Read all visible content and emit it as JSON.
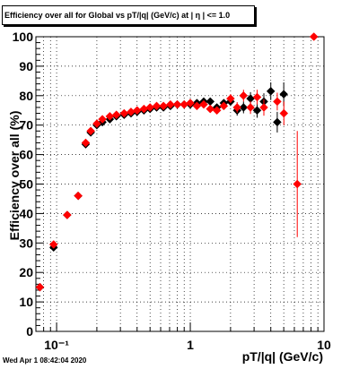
{
  "chart_data": {
    "type": "scatter",
    "title": "Efficiency over all for Global vs pT/|q| (GeV/c) at |  η | <= 1.0",
    "xlabel": "pT/|q| (GeV/c)",
    "ylabel": "Efficiency over all (%)",
    "xscale": "log",
    "xlim": [
      0.07,
      10
    ],
    "ylim": [
      0,
      100
    ],
    "grid": true,
    "x_tick_labels": [
      "10⁻¹",
      "1",
      "10"
    ],
    "y_tick_labels": [
      "0",
      "10",
      "20",
      "30",
      "40",
      "50",
      "60",
      "70",
      "80",
      "90",
      "100"
    ],
    "series": [
      {
        "color": "#000000",
        "marker": "diamond",
        "points": [
          {
            "x": 0.075,
            "y": 15,
            "err": 0.8
          },
          {
            "x": 0.095,
            "y": 28.5,
            "err": 1.0
          },
          {
            "x": 0.12,
            "y": 39.5,
            "err": 0.8
          },
          {
            "x": 0.145,
            "y": 46,
            "err": 0.8
          },
          {
            "x": 0.165,
            "y": 63.5,
            "err": 0.8
          },
          {
            "x": 0.18,
            "y": 67.5,
            "err": 0.6
          },
          {
            "x": 0.2,
            "y": 70,
            "err": 0.5
          },
          {
            "x": 0.22,
            "y": 71,
            "err": 0.5
          },
          {
            "x": 0.25,
            "y": 72,
            "err": 0.5
          },
          {
            "x": 0.28,
            "y": 73,
            "err": 0.5
          },
          {
            "x": 0.32,
            "y": 73.5,
            "err": 0.5
          },
          {
            "x": 0.36,
            "y": 74,
            "err": 0.5
          },
          {
            "x": 0.4,
            "y": 74.5,
            "err": 0.5
          },
          {
            "x": 0.45,
            "y": 75,
            "err": 0.5
          },
          {
            "x": 0.5,
            "y": 75.5,
            "err": 0.5
          },
          {
            "x": 0.56,
            "y": 76,
            "err": 0.5
          },
          {
            "x": 0.63,
            "y": 76,
            "err": 0.5
          },
          {
            "x": 0.71,
            "y": 76.5,
            "err": 0.6
          },
          {
            "x": 0.8,
            "y": 77,
            "err": 0.6
          },
          {
            "x": 0.9,
            "y": 77,
            "err": 0.6
          },
          {
            "x": 1.0,
            "y": 77,
            "err": 0.7
          },
          {
            "x": 1.12,
            "y": 77.5,
            "err": 0.8
          },
          {
            "x": 1.26,
            "y": 78,
            "err": 0.9
          },
          {
            "x": 1.41,
            "y": 78,
            "err": 1.0
          },
          {
            "x": 1.58,
            "y": 76,
            "err": 1.2
          },
          {
            "x": 1.78,
            "y": 77.5,
            "err": 1.3
          },
          {
            "x": 2.0,
            "y": 78,
            "err": 1.5
          },
          {
            "x": 2.24,
            "y": 75,
            "err": 1.8
          },
          {
            "x": 2.5,
            "y": 76,
            "err": 2.0
          },
          {
            "x": 2.82,
            "y": 79,
            "err": 2.2
          },
          {
            "x": 3.16,
            "y": 75,
            "err": 2.5
          },
          {
            "x": 3.55,
            "y": 78,
            "err": 2.8
          },
          {
            "x": 4.0,
            "y": 81.5,
            "err": 3.0
          },
          {
            "x": 4.47,
            "y": 71,
            "err": 3.5
          },
          {
            "x": 5.0,
            "y": 80.5,
            "err": 4.0
          }
        ]
      },
      {
        "color": "#ff0000",
        "marker": "diamond",
        "points": [
          {
            "x": 0.075,
            "y": 15,
            "err": 0.8
          },
          {
            "x": 0.095,
            "y": 29.5,
            "err": 1.0
          },
          {
            "x": 0.12,
            "y": 39.5,
            "err": 0.8
          },
          {
            "x": 0.145,
            "y": 46,
            "err": 0.8
          },
          {
            "x": 0.165,
            "y": 64,
            "err": 0.8
          },
          {
            "x": 0.18,
            "y": 68,
            "err": 0.6
          },
          {
            "x": 0.2,
            "y": 70.5,
            "err": 0.5
          },
          {
            "x": 0.22,
            "y": 72,
            "err": 0.5
          },
          {
            "x": 0.25,
            "y": 73,
            "err": 0.5
          },
          {
            "x": 0.28,
            "y": 73.5,
            "err": 0.5
          },
          {
            "x": 0.32,
            "y": 74,
            "err": 0.5
          },
          {
            "x": 0.36,
            "y": 74.5,
            "err": 0.5
          },
          {
            "x": 0.4,
            "y": 75,
            "err": 0.5
          },
          {
            "x": 0.45,
            "y": 75.5,
            "err": 0.5
          },
          {
            "x": 0.5,
            "y": 76,
            "err": 0.5
          },
          {
            "x": 0.56,
            "y": 76.5,
            "err": 0.5
          },
          {
            "x": 0.63,
            "y": 76.5,
            "err": 0.5
          },
          {
            "x": 0.71,
            "y": 77,
            "err": 0.6
          },
          {
            "x": 0.8,
            "y": 77,
            "err": 0.6
          },
          {
            "x": 0.9,
            "y": 77,
            "err": 0.6
          },
          {
            "x": 1.0,
            "y": 77.5,
            "err": 0.7
          },
          {
            "x": 1.12,
            "y": 76.5,
            "err": 0.8
          },
          {
            "x": 1.26,
            "y": 77,
            "err": 0.9
          },
          {
            "x": 1.41,
            "y": 75.5,
            "err": 1.0
          },
          {
            "x": 1.58,
            "y": 75,
            "err": 1.2
          },
          {
            "x": 1.78,
            "y": 76.5,
            "err": 1.3
          },
          {
            "x": 2.0,
            "y": 79,
            "err": 1.5
          },
          {
            "x": 2.24,
            "y": 76,
            "err": 1.8
          },
          {
            "x": 2.5,
            "y": 80,
            "err": 2.0
          },
          {
            "x": 2.82,
            "y": 76,
            "err": 2.2
          },
          {
            "x": 3.16,
            "y": 79.5,
            "err": 2.5
          },
          {
            "x": 3.55,
            "y": 76,
            "err": 2.8
          },
          {
            "x": 4.47,
            "y": 78,
            "err": 3.0
          },
          {
            "x": 5.01,
            "y": 74,
            "err": 4.0
          },
          {
            "x": 6.31,
            "y": 50,
            "err": 18
          },
          {
            "x": 8.4,
            "y": 100,
            "err": 0
          }
        ]
      }
    ]
  },
  "timestamp": "Wed Apr  1 08:42:04 2020"
}
